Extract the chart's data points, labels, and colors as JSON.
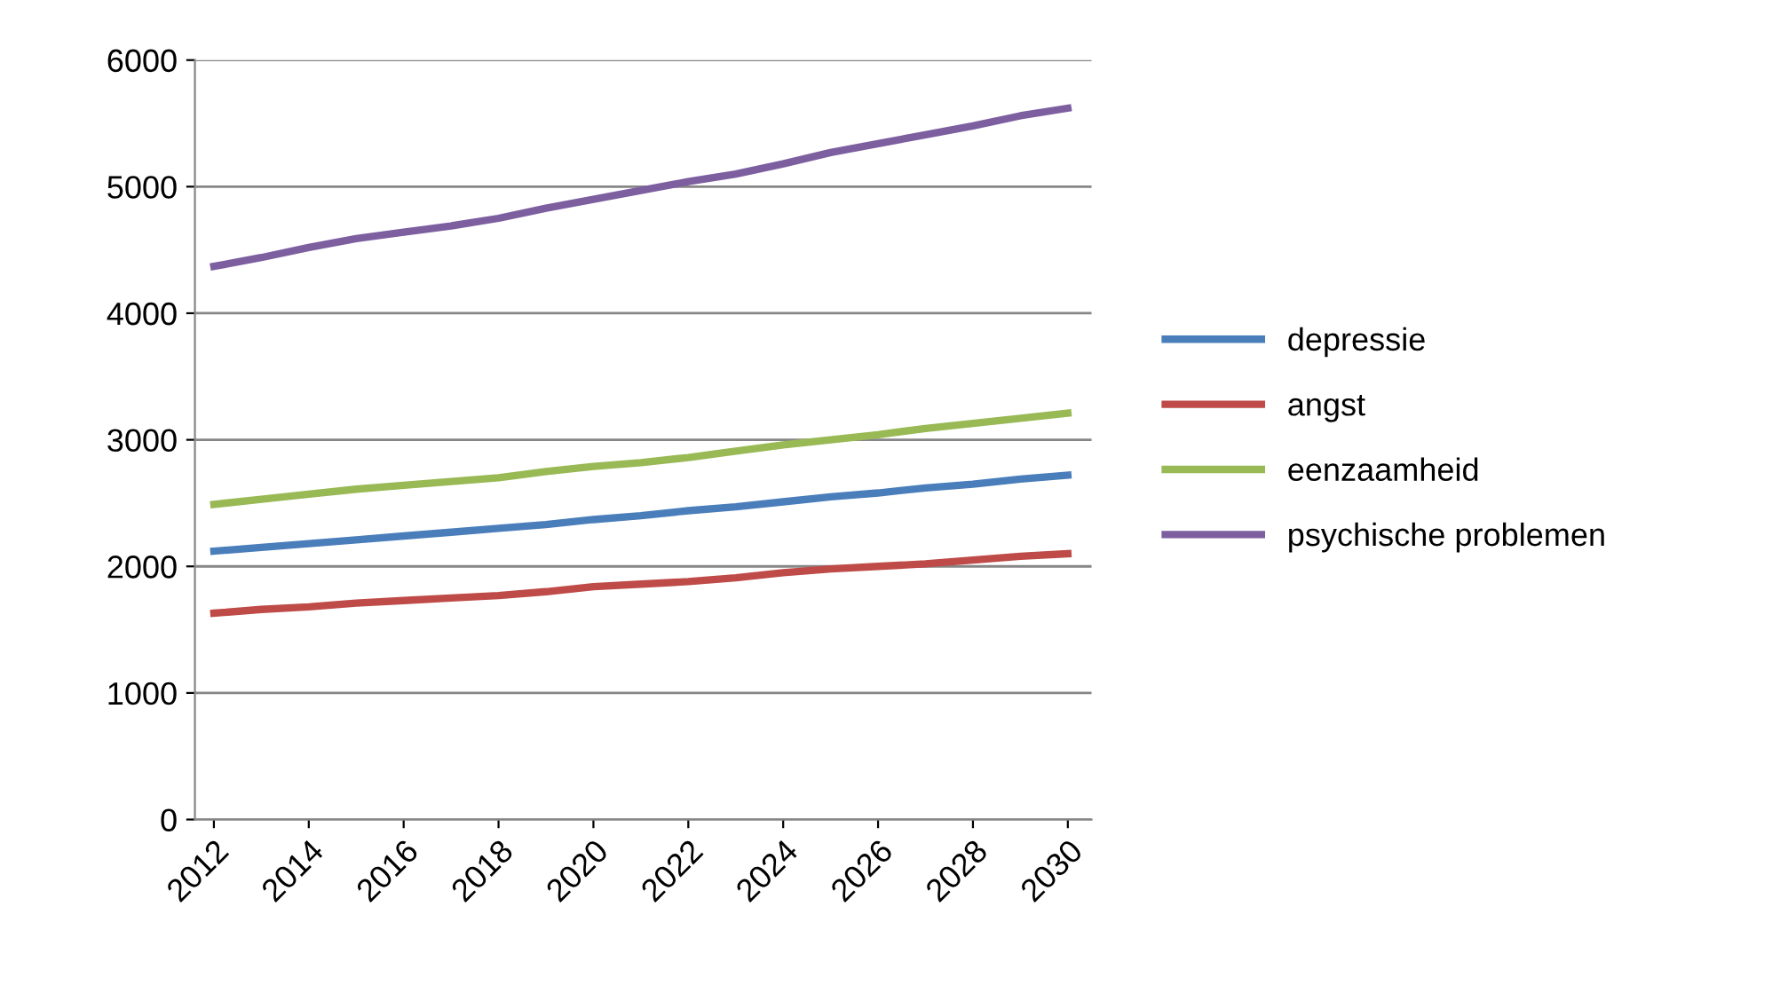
{
  "chart_data": {
    "type": "line",
    "x": [
      2012,
      2013,
      2014,
      2015,
      2016,
      2017,
      2018,
      2019,
      2020,
      2021,
      2022,
      2023,
      2024,
      2025,
      2026,
      2027,
      2028,
      2029,
      2030
    ],
    "series": [
      {
        "name": "depressie",
        "color": "#4a7ebb",
        "values": [
          2120,
          2150,
          2180,
          2210,
          2240,
          2270,
          2300,
          2330,
          2370,
          2400,
          2440,
          2470,
          2510,
          2550,
          2580,
          2620,
          2650,
          2690,
          2720
        ]
      },
      {
        "name": "angst",
        "color": "#be4b48",
        "values": [
          1630,
          1660,
          1680,
          1710,
          1730,
          1750,
          1770,
          1800,
          1840,
          1860,
          1880,
          1910,
          1950,
          1980,
          2000,
          2020,
          2050,
          2080,
          2100
        ]
      },
      {
        "name": "eenzaamheid",
        "color": "#98b954",
        "values": [
          2490,
          2530,
          2570,
          2610,
          2640,
          2670,
          2700,
          2750,
          2790,
          2820,
          2860,
          2910,
          2960,
          3000,
          3040,
          3090,
          3130,
          3170,
          3210
        ]
      },
      {
        "name": "psychische problemen",
        "color": "#7d5fa0",
        "values": [
          4370,
          4440,
          4520,
          4590,
          4640,
          4690,
          4750,
          4830,
          4900,
          4970,
          5040,
          5100,
          5180,
          5270,
          5340,
          5410,
          5480,
          5560,
          5620
        ]
      }
    ],
    "xlim": [
      2011.6,
      2030.5
    ],
    "xticks": [
      2012,
      2014,
      2016,
      2018,
      2020,
      2022,
      2024,
      2026,
      2028,
      2030
    ],
    "ylim": [
      0,
      6000
    ],
    "yticks": [
      0,
      1000,
      2000,
      3000,
      4000,
      5000,
      6000
    ],
    "grid": "y",
    "legend": "right",
    "marker": "none",
    "line_style": "solid"
  }
}
